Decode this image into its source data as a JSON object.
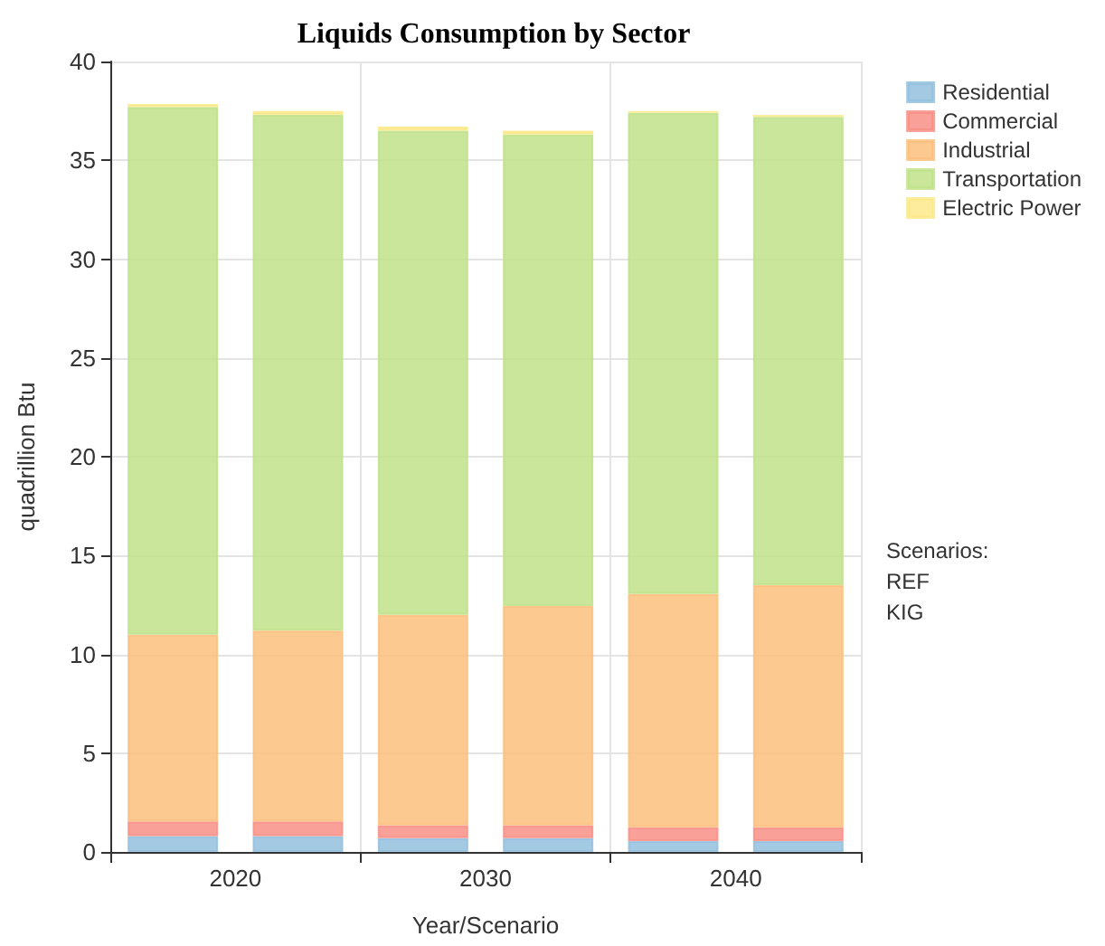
{
  "chart_data": {
    "type": "bar",
    "title": "Liquids Consumption by Sector",
    "xlabel": "Year/Scenario",
    "ylabel": "quadrillion Btu",
    "categories": [
      "2020",
      null,
      "2030",
      null,
      "2040",
      null
    ],
    "stacked": true,
    "series": [
      {
        "name": "Residential",
        "color": "#94bfde",
        "values": [
          0.8,
          0.8,
          0.7,
          0.7,
          0.55,
          0.55
        ]
      },
      {
        "name": "Commercial",
        "color": "#f88f86",
        "values": [
          0.75,
          0.75,
          0.65,
          0.65,
          0.7,
          0.7
        ]
      },
      {
        "name": "Industrial",
        "color": "#fbc07e",
        "values": [
          9.45,
          9.65,
          10.65,
          11.1,
          11.8,
          12.25
        ]
      },
      {
        "name": "Transportation",
        "color": "#c0e28a",
        "values": [
          26.7,
          26.1,
          24.5,
          23.85,
          24.35,
          23.7
        ]
      },
      {
        "name": "Electric Power",
        "color": "#fbe98a",
        "values": [
          0.15,
          0.2,
          0.2,
          0.2,
          0.1,
          0.1
        ]
      }
    ],
    "ylim": [
      0,
      40
    ],
    "yticks": [
      0,
      5,
      10,
      15,
      20,
      25,
      30,
      35,
      40
    ],
    "grid": true,
    "legend": "top right",
    "annotations": [
      "Scenarios:\nREF\nKIG"
    ]
  }
}
